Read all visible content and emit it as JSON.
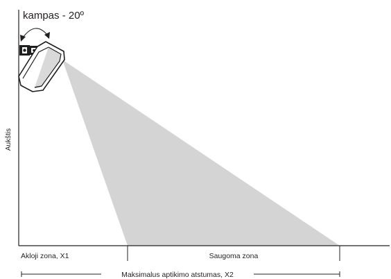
{
  "angle_label": "kampas - 20º",
  "vertical_axis_label": "Aukštis",
  "zones": {
    "blind_zone": "Akloji zona, X1",
    "protected_zone": "Saugoma zona"
  },
  "range_label": "Maksimalus aptikimo atstumas, X2",
  "colors": {
    "line": "#231f20",
    "coverage_fill": "#d4d4d4",
    "background": "#ffffff"
  }
}
